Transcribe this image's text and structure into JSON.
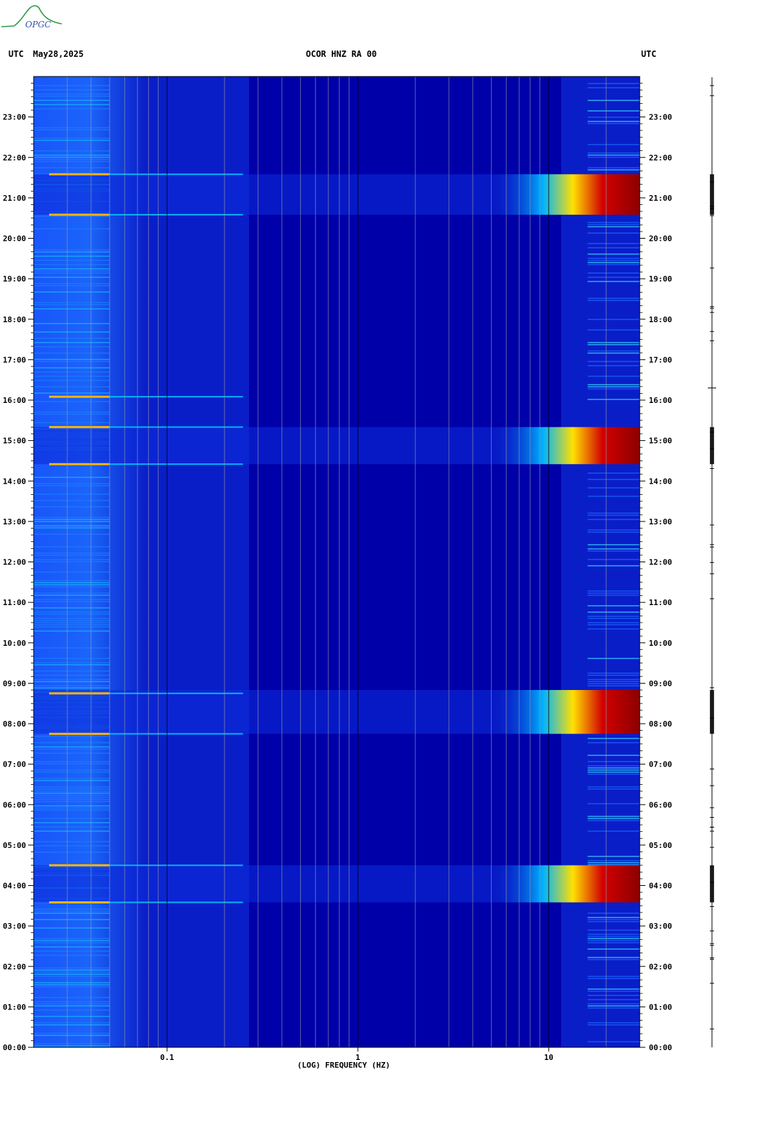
{
  "header": {
    "left_zone": "UTC",
    "date": "May28,2025",
    "station": "OCOR HNZ RA 00",
    "right_zone": "UTC"
  },
  "logo": {
    "text": "OPGC"
  },
  "colors": {
    "background": "#0a1ec8",
    "quiet": "#0000a0",
    "cyan": "#00c8ff",
    "yellow": "#ffe000",
    "red": "#c80000",
    "dark_red": "#8c0000"
  },
  "chart_data": {
    "type": "heatmap",
    "title": "OCOR HNZ RA 00",
    "xlabel": "(LOG) FREQUENCY (HZ)",
    "x_scale": "log",
    "xlim": [
      0.02,
      30
    ],
    "x_ticks": [
      0.1,
      1,
      10
    ],
    "x_tick_labels": [
      "0.1",
      "1",
      "10"
    ],
    "ylim_hours": [
      0,
      24
    ],
    "y_tick_labels": [
      "00:00",
      "01:00",
      "02:00",
      "03:00",
      "04:00",
      "05:00",
      "06:00",
      "07:00",
      "08:00",
      "09:00",
      "10:00",
      "11:00",
      "12:00",
      "13:00",
      "14:00",
      "15:00",
      "16:00",
      "17:00",
      "18:00",
      "19:00",
      "20:00",
      "21:00",
      "22:00",
      "23:00"
    ],
    "high_energy_windows_utc": [
      {
        "start": "03:35",
        "end": "04:30"
      },
      {
        "start": "07:45",
        "end": "08:50"
      },
      {
        "start": "14:25",
        "end": "15:20"
      },
      {
        "start": "20:35",
        "end": "21:35"
      }
    ],
    "narrow_transients_utc": [
      "03:35",
      "04:30",
      "07:45",
      "08:45",
      "14:25",
      "15:20",
      "16:05",
      "20:35",
      "21:35"
    ]
  }
}
